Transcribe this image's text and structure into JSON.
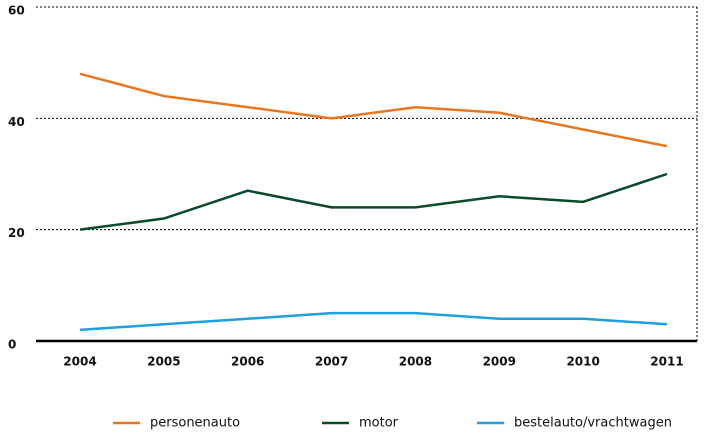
{
  "chart_data": {
    "type": "line",
    "categories": [
      "2004",
      "2005",
      "2006",
      "2007",
      "2008",
      "2009",
      "2010",
      "2011"
    ],
    "series": [
      {
        "name": "personenauto",
        "color": "#e8761e",
        "values": [
          48,
          44,
          42,
          40,
          42,
          41,
          38,
          35
        ]
      },
      {
        "name": "motor",
        "color": "#0b4a2a",
        "values": [
          20,
          22,
          27,
          24,
          24,
          26,
          25,
          30
        ]
      },
      {
        "name": "bestelauto/vrachtwagen",
        "color": "#1ea0dc",
        "values": [
          2,
          3,
          4,
          5,
          5,
          4,
          4,
          3
        ]
      }
    ],
    "ylim": [
      0,
      60
    ],
    "yticks": [
      0,
      20,
      40,
      60
    ],
    "grid": true,
    "legend": "bottom"
  }
}
